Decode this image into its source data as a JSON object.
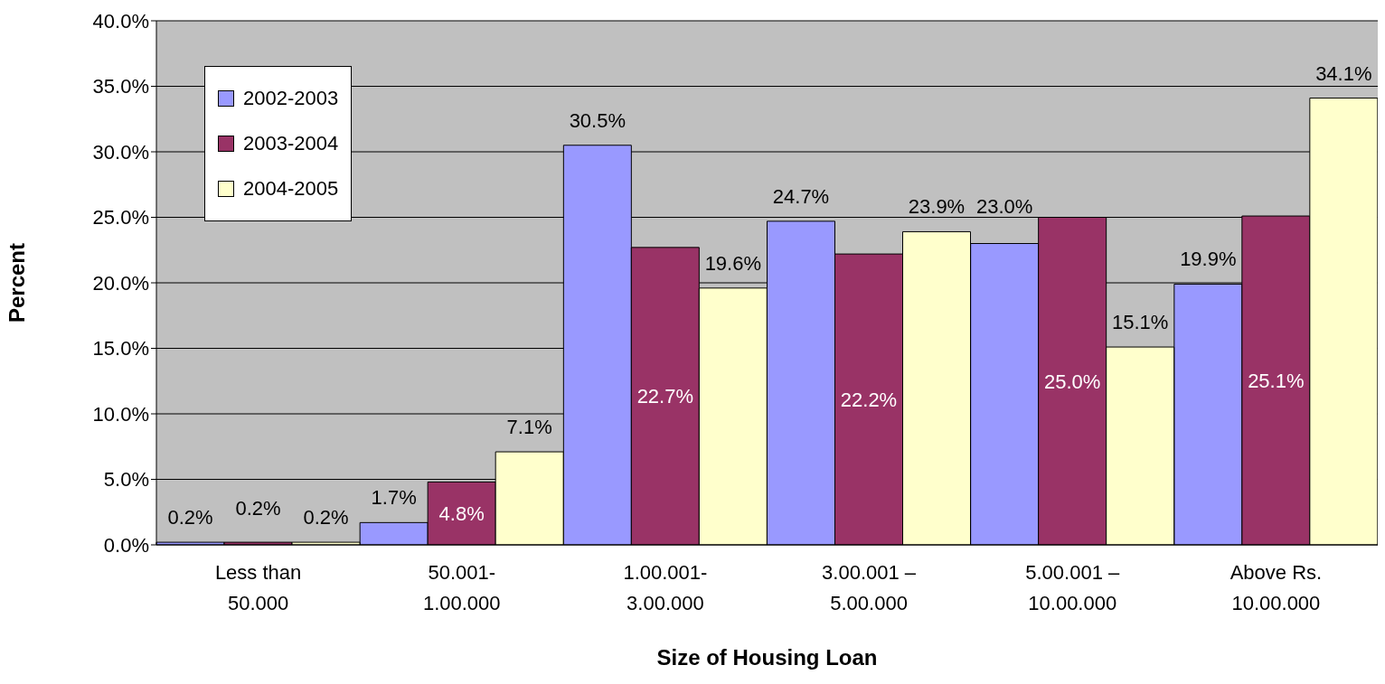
{
  "chart_data": {
    "type": "bar",
    "xlabel": "Size of Housing Loan",
    "ylabel": "Percent",
    "categories": [
      "Less than 50.000",
      "50.001- 1.00.000",
      "1.00.001- 3.00.000",
      "3.00.001 – 5.00.000",
      "5.00.001 – 10.00.000",
      "Above Rs. 10.00.000"
    ],
    "series": [
      {
        "name": "2002-2003",
        "color": "#9999ff",
        "values": [
          0.2,
          1.7,
          30.5,
          24.7,
          23.0,
          19.9
        ],
        "value_labels": [
          "0.2%",
          "1.7%",
          "30.5%",
          "24.7%",
          "23.0%",
          "19.9%"
        ]
      },
      {
        "name": "2003-2004",
        "color": "#993366",
        "values": [
          0.2,
          4.8,
          22.7,
          22.2,
          25.0,
          25.1
        ],
        "value_labels": [
          "0.2%",
          "4.8%",
          "22.7%",
          "22.2%",
          "25.0%",
          "25.1%"
        ]
      },
      {
        "name": "2004-2005",
        "color": "#ffffcc",
        "values": [
          0.2,
          7.1,
          19.6,
          23.9,
          15.1,
          34.1
        ],
        "value_labels": [
          "0.2%",
          "7.1%",
          "19.6%",
          "23.9%",
          "15.1%",
          "34.1%"
        ]
      }
    ],
    "ylim": [
      0,
      40
    ],
    "yticks": [
      {
        "value": 0,
        "label": "0.0%"
      },
      {
        "value": 5,
        "label": "5.0%"
      },
      {
        "value": 10,
        "label": "10.0%"
      },
      {
        "value": 15,
        "label": "15.0%"
      },
      {
        "value": 20,
        "label": "20.0%"
      },
      {
        "value": 25,
        "label": "25.0%"
      },
      {
        "value": 30,
        "label": "30.0%"
      },
      {
        "value": 35,
        "label": "35.0%"
      },
      {
        "value": 40,
        "label": "40.0%"
      }
    ],
    "grid": "y",
    "legend": "top left"
  }
}
